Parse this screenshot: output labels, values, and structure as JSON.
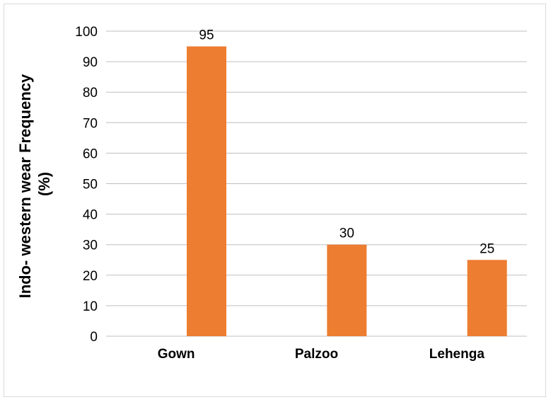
{
  "chart_data": {
    "type": "bar",
    "categories": [
      "Gown",
      "Palzoo",
      "Lehenga"
    ],
    "values": [
      95,
      30,
      25
    ],
    "data_labels": [
      "95",
      "30",
      "25"
    ],
    "title": "",
    "xlabel": "",
    "ylabel_lines": [
      "Indo- western wear Frequency",
      "(%)"
    ],
    "ylim": [
      0,
      100
    ],
    "yticks": [
      0,
      10,
      20,
      30,
      40,
      50,
      60,
      70,
      80,
      90,
      100
    ],
    "grid": "horizontal",
    "legend": "none",
    "bar_color": "#ED7D31",
    "gridline_color": "#bfbfbf"
  }
}
